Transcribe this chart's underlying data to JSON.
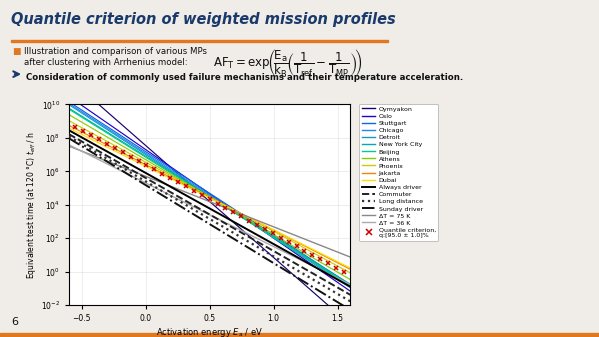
{
  "title": "Quantile criterion of weighted mission profiles",
  "bullet_text_line1": "Illustration and comparison of various MPs",
  "bullet_text_line2": "after clustering with Arrhenius model:",
  "arrow_text": "Consideration of commonly used failure mechanisms and their temperature acceleration.",
  "xlabel": "Activation energy $E_\\mathrm{a}$ / eV",
  "ylabel": "Equivalent test time (at 120 °C) $t_{eff}$ / h",
  "xlim": [
    -0.6,
    1.6
  ],
  "slide_number": "6",
  "bg_color": "#f0ede8",
  "plot_bg": "#ffffff",
  "title_color": "#1a3a6b",
  "cities": [
    {
      "name": "Oymyakon",
      "T_C": -15,
      "color": "#1a006e",
      "base": 35000000.0
    },
    {
      "name": "Oslo",
      "T_C": 5,
      "color": "#2200cc",
      "base": 20000000.0
    },
    {
      "name": "Stuttgart",
      "T_C": 10,
      "color": "#1166dd",
      "base": 15000000.0
    },
    {
      "name": "Chicago",
      "T_C": 10,
      "color": "#2288ee",
      "base": 12000000.0
    },
    {
      "name": "Detroit",
      "T_C": 10,
      "color": "#1199cc",
      "base": 10000000.0
    },
    {
      "name": "New York City",
      "T_C": 13,
      "color": "#00aaaa",
      "base": 8000000.0
    },
    {
      "name": "Beijing",
      "T_C": 13,
      "color": "#00cc88",
      "base": 7000000.0
    },
    {
      "name": "Athens",
      "T_C": 18,
      "color": "#88cc00",
      "base": 5000000.0
    },
    {
      "name": "Phoenix",
      "T_C": 24,
      "color": "#cccc00",
      "base": 3500000.0
    },
    {
      "name": "Jakarta",
      "T_C": 28,
      "color": "#ee8800",
      "base": 2500000.0
    },
    {
      "name": "Dubai",
      "T_C": 30,
      "color": "#ffdd00",
      "base": 2000000.0
    }
  ],
  "driver_lines": [
    {
      "name": "Always driver",
      "style": "-",
      "color": "#000000",
      "lw": 1.4,
      "T_C": 22,
      "base": 800000.0
    },
    {
      "name": "Commuter",
      "style": "--",
      "color": "#222222",
      "lw": 1.4,
      "T_C": 20,
      "base": 400000.0
    },
    {
      "name": "Long distance",
      "style": ":",
      "color": "#333333",
      "lw": 1.6,
      "T_C": 18,
      "base": 250000.0
    },
    {
      "name": "Sunday driver",
      "style": "-.",
      "color": "#111111",
      "lw": 1.4,
      "T_C": 15,
      "base": 150000.0
    }
  ],
  "dT_lines": [
    {
      "name": "ΔT = 75 K",
      "color": "#888888",
      "lw": 1.0,
      "T_C": 45,
      "base": 500000.0
    },
    {
      "name": "ΔT = 36 K",
      "color": "#aaaaaa",
      "lw": 1.0,
      "T_C": 30,
      "base": 200000.0
    }
  ],
  "quantile_color": "#cc0000",
  "quantile_T_C": 24,
  "quantile_base": 2500000.0,
  "T_ref_C": 120,
  "kB": 8.617e-05
}
